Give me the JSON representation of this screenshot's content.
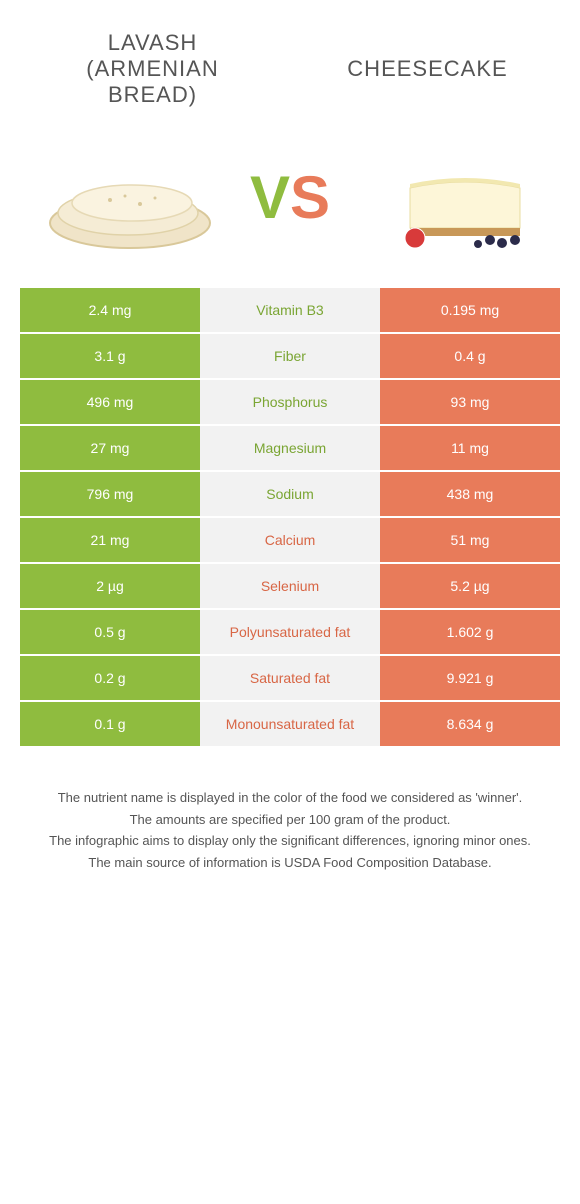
{
  "colors": {
    "green": "#8fbc3f",
    "orange": "#e87b5a",
    "centerBg": "#f2f2f2",
    "centerGreenText": "#7aa533",
    "centerOrangeText": "#d86645",
    "titleText": "#555555"
  },
  "foodLeft": {
    "title": "Lavash (Armenian bread)"
  },
  "foodRight": {
    "title": "Cheesecake"
  },
  "vs": {
    "v": "V",
    "s": "S"
  },
  "rows": [
    {
      "nutrient": "Vitamin B3",
      "left": "2.4 mg",
      "right": "0.195 mg",
      "winner": "left"
    },
    {
      "nutrient": "Fiber",
      "left": "3.1 g",
      "right": "0.4 g",
      "winner": "left"
    },
    {
      "nutrient": "Phosphorus",
      "left": "496 mg",
      "right": "93 mg",
      "winner": "left"
    },
    {
      "nutrient": "Magnesium",
      "left": "27 mg",
      "right": "11 mg",
      "winner": "left"
    },
    {
      "nutrient": "Sodium",
      "left": "796 mg",
      "right": "438 mg",
      "winner": "left"
    },
    {
      "nutrient": "Calcium",
      "left": "21 mg",
      "right": "51 mg",
      "winner": "right"
    },
    {
      "nutrient": "Selenium",
      "left": "2 µg",
      "right": "5.2 µg",
      "winner": "right"
    },
    {
      "nutrient": "Polyunsaturated fat",
      "left": "0.5 g",
      "right": "1.602 g",
      "winner": "right"
    },
    {
      "nutrient": "Saturated fat",
      "left": "0.2 g",
      "right": "9.921 g",
      "winner": "right"
    },
    {
      "nutrient": "Monounsaturated fat",
      "left": "0.1 g",
      "right": "8.634 g",
      "winner": "right"
    }
  ],
  "footer": {
    "l1": "The nutrient name is displayed in the color of the food we considered as 'winner'.",
    "l2": "The amounts are specified per 100 gram of the product.",
    "l3": "The infographic aims to display only the significant differences, ignoring minor ones.",
    "l4": "The main source of information is USDA Food Composition Database."
  },
  "typography": {
    "title_fontsize": 22,
    "vs_fontsize": 60,
    "cell_fontsize": 14,
    "footer_fontsize": 13
  }
}
